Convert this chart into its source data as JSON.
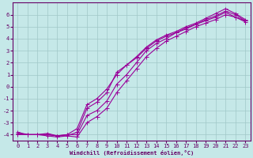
{
  "xlabel": "Windchill (Refroidissement éolien,°C)",
  "background_color": "#c5e8e8",
  "grid_color": "#a0c8c8",
  "line_color": "#990099",
  "markersize": 2.0,
  "linewidth": 0.8,
  "xlim": [
    -0.5,
    23.5
  ],
  "ylim": [
    -4.5,
    7.0
  ],
  "xticks": [
    0,
    1,
    2,
    3,
    4,
    5,
    6,
    7,
    8,
    9,
    10,
    11,
    12,
    13,
    14,
    15,
    16,
    17,
    18,
    19,
    20,
    21,
    22,
    23
  ],
  "yticks": [
    -4,
    -3,
    -2,
    -1,
    0,
    1,
    2,
    3,
    4,
    5,
    6
  ],
  "curve1_x": [
    0,
    1,
    2,
    3,
    4,
    5,
    6,
    7,
    8,
    9,
    10,
    11,
    12,
    13,
    14,
    15,
    16,
    17,
    18,
    19,
    20,
    21,
    22,
    23
  ],
  "curve1_y": [
    -3.9,
    -4.0,
    -4.0,
    -4.0,
    -4.1,
    -4.1,
    -3.8,
    -1.8,
    -1.3,
    -0.5,
    1.2,
    1.8,
    2.4,
    3.2,
    3.8,
    4.2,
    4.5,
    4.9,
    5.2,
    5.6,
    5.9,
    6.3,
    6.0,
    5.5
  ],
  "curve2_x": [
    0,
    1,
    2,
    3,
    4,
    5,
    6,
    7,
    8,
    9,
    10,
    11,
    12,
    13,
    14,
    15,
    16,
    17,
    18,
    19,
    20,
    21,
    22,
    23
  ],
  "curve2_y": [
    -3.8,
    -4.0,
    -4.0,
    -4.0,
    -4.1,
    -4.0,
    -4.0,
    -2.4,
    -2.0,
    -1.2,
    0.2,
    1.0,
    2.0,
    3.0,
    3.6,
    4.0,
    4.5,
    4.8,
    5.2,
    5.5,
    5.8,
    6.2,
    5.8,
    5.5
  ],
  "curve3_x": [
    0,
    1,
    2,
    3,
    4,
    5,
    6,
    7,
    8,
    9,
    10,
    11,
    12,
    13,
    14,
    15,
    16,
    17,
    18,
    19,
    20,
    21,
    22,
    23
  ],
  "curve3_y": [
    -3.9,
    -4.0,
    -4.0,
    -3.9,
    -4.1,
    -4.0,
    -3.5,
    -1.5,
    -1.0,
    -0.2,
    1.0,
    1.8,
    2.5,
    3.3,
    3.9,
    4.3,
    4.6,
    5.0,
    5.3,
    5.7,
    6.1,
    6.5,
    6.1,
    5.6
  ],
  "curve4_x": [
    0,
    1,
    2,
    3,
    4,
    5,
    6,
    7,
    8,
    9,
    10,
    11,
    12,
    13,
    14,
    15,
    16,
    17,
    18,
    19,
    20,
    21,
    22,
    23
  ],
  "curve4_y": [
    -4.0,
    -4.0,
    -4.0,
    -4.1,
    -4.2,
    -4.1,
    -4.2,
    -3.0,
    -2.5,
    -1.8,
    -0.5,
    0.5,
    1.5,
    2.5,
    3.2,
    3.8,
    4.2,
    4.6,
    5.0,
    5.3,
    5.6,
    6.0,
    5.8,
    5.4
  ]
}
